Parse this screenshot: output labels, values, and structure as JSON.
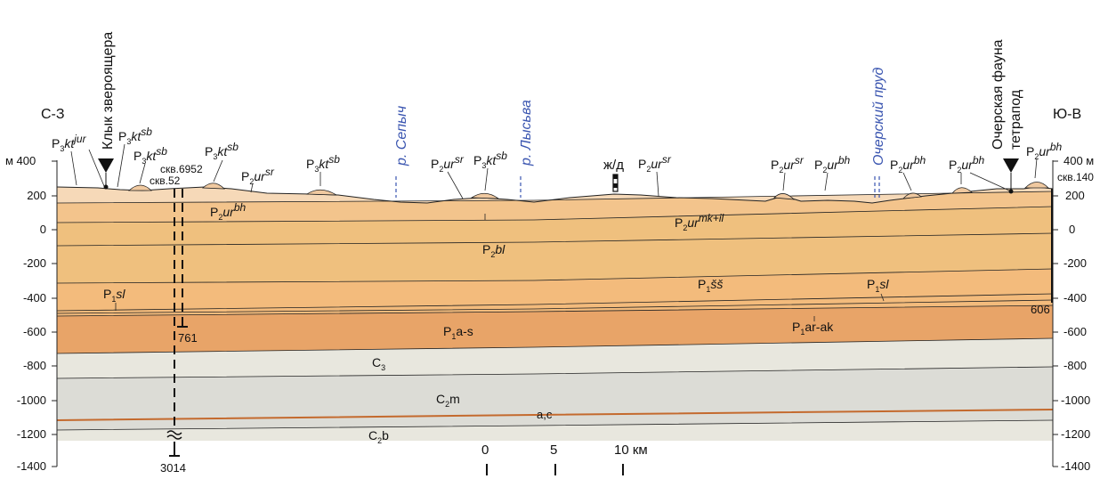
{
  "header": {
    "left_dir": "С-З",
    "right_dir": "Ю-В"
  },
  "axis": {
    "unit": "м",
    "ticks": [
      "400",
      "200",
      "0",
      "-200",
      "-400",
      "-600",
      "-800",
      "-1000",
      "-1200",
      "-1400"
    ],
    "left_top_label": "м 400",
    "right_top_label": "400 м"
  },
  "rivers": [
    "р. Сепыч",
    "р. Лысьва",
    "Очерский пруд"
  ],
  "annotations": {
    "tooth": "Клык звероящера",
    "fauna_line1": "Очерская фауна",
    "fauna_line2": "тетрапод",
    "rail": "ж/д"
  },
  "wells": [
    {
      "name": "скв.52",
      "depth": "3014"
    },
    {
      "name": "скв.6952",
      "depth": "761"
    },
    {
      "name": "скв.140",
      "depth": "606"
    }
  ],
  "surface_labels": [
    {
      "base": "P",
      "sub": "3",
      "mid": "kt",
      "sup": "jur"
    },
    {
      "base": "P",
      "sub": "3",
      "mid": "kt",
      "sup": "sb"
    },
    {
      "base": "P",
      "sub": "3",
      "mid": "kt",
      "sup": "sb"
    },
    {
      "base": "P",
      "sub": "3",
      "mid": "kt",
      "sup": "sb"
    },
    {
      "base": "P",
      "sub": "2",
      "mid": "ur",
      "sup": "sr"
    },
    {
      "base": "P",
      "sub": "3",
      "mid": "kt",
      "sup": "sb"
    },
    {
      "base": "P",
      "sub": "2",
      "mid": "ur",
      "sup": "sr"
    },
    {
      "base": "P",
      "sub": "3",
      "mid": "kt",
      "sup": "sb"
    },
    {
      "base": "P",
      "sub": "2",
      "mid": "ur",
      "sup": "sr"
    },
    {
      "base": "P",
      "sub": "2",
      "mid": "ur",
      "sup": "sr"
    },
    {
      "base": "P",
      "sub": "2",
      "mid": "ur",
      "sup": "bh"
    },
    {
      "base": "P",
      "sub": "2",
      "mid": "ur",
      "sup": "bh"
    },
    {
      "base": "P",
      "sub": "2",
      "mid": "ur",
      "sup": "bh"
    },
    {
      "base": "P",
      "sub": "2",
      "mid": "ur",
      "sup": "bh"
    }
  ],
  "layer_labels": [
    {
      "base": "P",
      "sub": "2",
      "rest": "ur",
      "sup": "bh",
      "italic": true
    },
    {
      "base": "P",
      "sub": "2",
      "rest": "ur",
      "sup": "mk+il",
      "italic": true
    },
    {
      "base": "P",
      "sub": "2",
      "rest": "bl",
      "sup": "",
      "italic": true
    },
    {
      "base": "P",
      "sub": "1",
      "rest": "sl",
      "sup": "",
      "italic": true
    },
    {
      "base": "P",
      "sub": "1",
      "rest": "šš",
      "sup": "",
      "italic": true
    },
    {
      "base": "P",
      "sub": "1",
      "rest": "sl",
      "sup": "",
      "italic": true
    },
    {
      "base": "P",
      "sub": "1",
      "rest": "a-s",
      "sup": "",
      "italic": false
    },
    {
      "base": "P",
      "sub": "1",
      "rest": "ar-ak",
      "sup": "",
      "italic": false
    },
    {
      "base": "C",
      "sub": "3",
      "rest": "",
      "sup": "",
      "italic": false
    },
    {
      "base": "C",
      "sub": "2",
      "rest": "m",
      "sup": "",
      "italic": false
    },
    {
      "base": "",
      "sub": "",
      "rest": "a,c",
      "sup": "",
      "italic": false
    },
    {
      "base": "C",
      "sub": "2",
      "rest": "b",
      "sup": "",
      "italic": false
    }
  ],
  "scale": {
    "labels": [
      "0",
      "5",
      "10 км"
    ]
  },
  "colors": {
    "layer1": "#f6d9b8",
    "layer2": "#f3c48c",
    "layer3": "#efc07e",
    "layer4": "#f3bb7c",
    "layer5": "#e8a468",
    "layer6": "#e8e7de",
    "layer7": "#dcdcd6",
    "marker": "#c46a2e",
    "river": "#3a55b0"
  }
}
